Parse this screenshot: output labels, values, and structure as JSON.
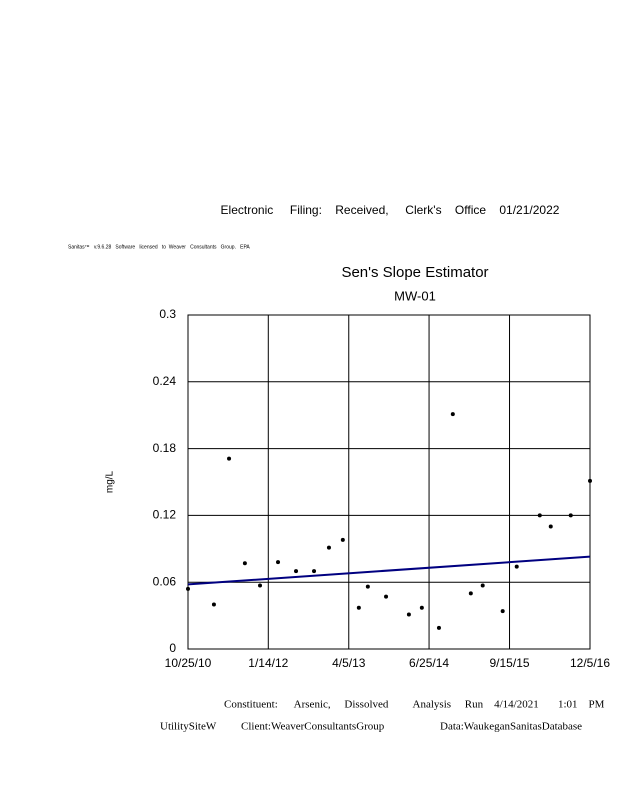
{
  "header": {
    "filing": "Electronic     Filing:    Received,     Clerk's    Office    01/21/2022",
    "license": "Sanitas™   v.9.6.28   Software   licensed   to  Weaver   Consultants   Group.   EPA"
  },
  "chart_data": {
    "type": "scatter",
    "title": "Sen's Slope Estimator",
    "subtitle": "MW-01",
    "y_label": "mg/L",
    "x": [
      "2010-10-25",
      "2011-03-18",
      "2011-06-10",
      "2011-09-06",
      "2011-11-29",
      "2012-03-08",
      "2012-06-16",
      "2012-09-24",
      "2012-12-16",
      "2013-03-03",
      "2013-05-31",
      "2013-07-20",
      "2013-10-29",
      "2014-03-05",
      "2014-05-16",
      "2014-08-19",
      "2014-11-04",
      "2015-02-12",
      "2015-04-19",
      "2015-08-08",
      "2015-10-25",
      "2016-03-01",
      "2016-05-01",
      "2016-08-20",
      "2016-12-05"
    ],
    "values": [
      0.054,
      0.04,
      0.171,
      0.077,
      0.057,
      0.078,
      0.07,
      0.07,
      0.091,
      0.098,
      0.037,
      0.056,
      0.047,
      0.031,
      0.037,
      0.019,
      0.211,
      0.05,
      0.057,
      0.034,
      0.074,
      0.12,
      0.11,
      0.12,
      0.151
    ],
    "color": "#000000",
    "trend_line": {
      "x": [
        "2010-10-25",
        "2016-12-05"
      ],
      "values": [
        0.058,
        0.083
      ],
      "color": "#000080"
    },
    "xlim": [
      "2010-10-25",
      "2016-12-05"
    ],
    "xticks": [
      {
        "value": "2010-10-25",
        "label": "10/25/10"
      },
      {
        "value": "2012-01-14",
        "label": "1/14/12"
      },
      {
        "value": "2013-04-05",
        "label": "4/5/13"
      },
      {
        "value": "2014-06-25",
        "label": "6/25/14"
      },
      {
        "value": "2015-09-15",
        "label": "9/15/15"
      },
      {
        "value": "2016-12-05",
        "label": "12/5/16"
      }
    ],
    "ylim": [
      0,
      0.3
    ],
    "yticks": [
      0,
      0.06,
      0.12,
      0.18,
      0.24,
      0.3
    ],
    "grid": true
  },
  "footer": {
    "constituent": "Constituent:      Arsenic,     Dissolved         Analysis     Run    4/14/2021       1:01    PM",
    "site": "UtilitySiteW",
    "client": "Client:WeaverConsultantsGroup",
    "database": "Data:WaukeganSanitasDatabase"
  }
}
